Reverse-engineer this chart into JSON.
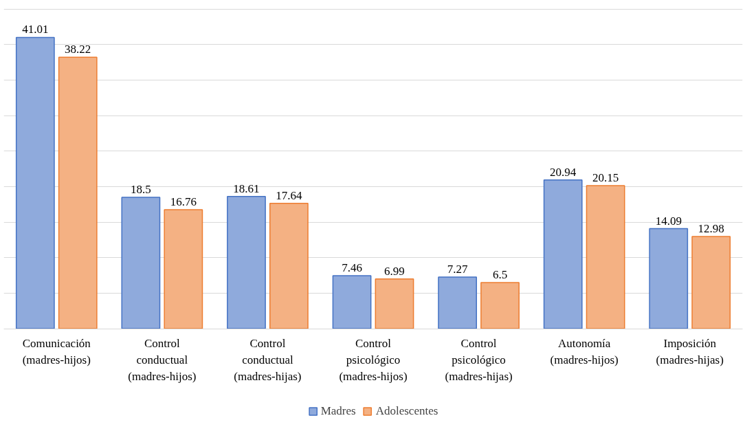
{
  "chart_data": {
    "type": "bar",
    "categories": [
      "Comunicación\n(madres-hijos)",
      "Control\nconductual\n(madres-hijos)",
      "Control\nconductual\n(madres-hijas)",
      "Control\npsicológico\n(madres-hijos)",
      "Control\npsicológico\n(madres-hijas)",
      "Autonomía\n(madres-hijos)",
      "Imposición\n(madres-hijas)"
    ],
    "series": [
      {
        "name": "Madres",
        "color": "#8faadc",
        "values": [
          41.01,
          18.5,
          18.61,
          7.46,
          7.27,
          20.94,
          14.09
        ]
      },
      {
        "name": "Adolescentes",
        "color": "#f4b183",
        "values": [
          38.22,
          16.76,
          17.64,
          6.99,
          6.5,
          20.15,
          12.98
        ]
      }
    ],
    "ylim": [
      0,
      45
    ],
    "yticks": [
      {
        "value": 0,
        "label": null
      },
      {
        "value": 5,
        "label": null
      },
      {
        "value": 10,
        "label": null
      },
      {
        "value": 15,
        "label": null
      },
      {
        "value": 20,
        "label": null
      },
      {
        "value": 25,
        "label": null
      },
      {
        "value": 30,
        "label": null
      },
      {
        "value": 35,
        "label": null
      },
      {
        "value": 40,
        "label": null
      },
      {
        "value": 45,
        "label": null
      }
    ],
    "tick_labels": "x",
    "grid": "y",
    "data_labels": true,
    "legend": "bottom"
  }
}
